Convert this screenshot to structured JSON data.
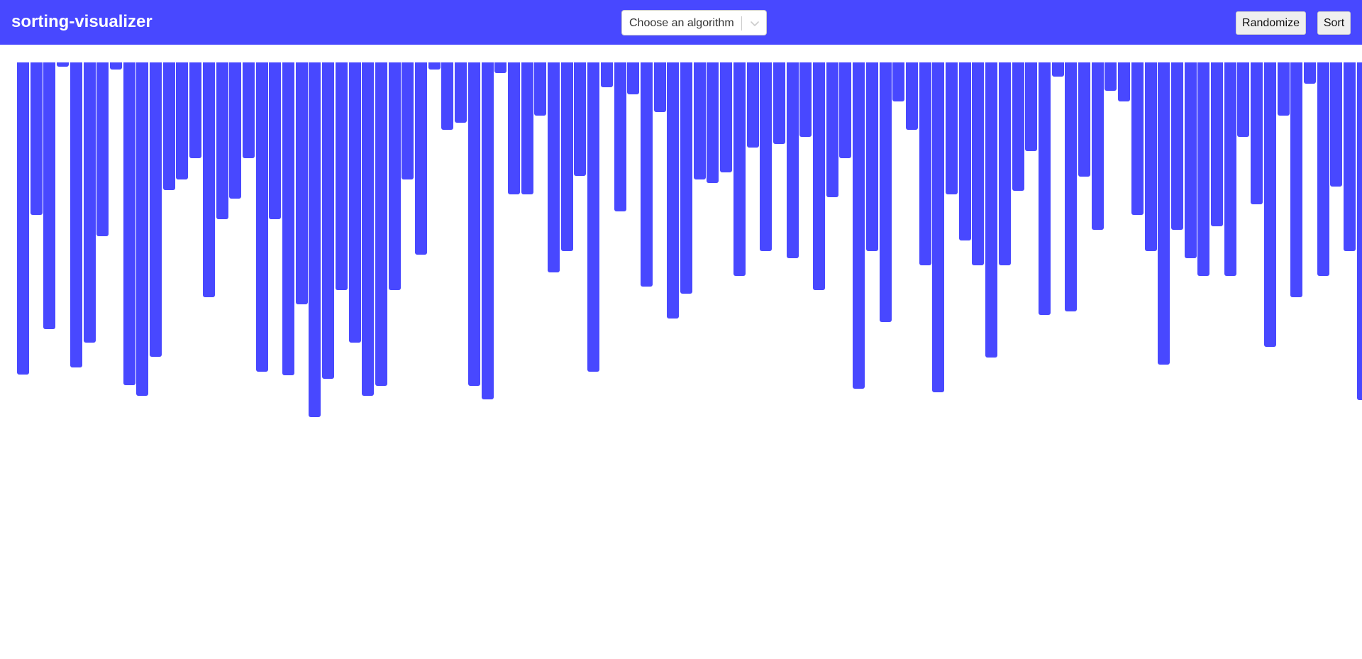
{
  "header": {
    "title": "sorting-visualizer",
    "algorithm_select": {
      "value": "Choose an algorithm",
      "chevron_icon": "chevron-down-icon"
    },
    "randomize_label": "Randomize",
    "sort_label": "Sort"
  },
  "colors": {
    "accent": "#4848ff",
    "background": "#ffffff"
  },
  "chart_data": {
    "type": "bar",
    "orientation": "hanging-from-top",
    "values": [
      440,
      215,
      376,
      6,
      430,
      395,
      245,
      10,
      455,
      470,
      415,
      180,
      165,
      135,
      331,
      221,
      192,
      135,
      436,
      221,
      441,
      341,
      500,
      446,
      321,
      395,
      470,
      456,
      321,
      165,
      271,
      10,
      95,
      85,
      456,
      475,
      15,
      186,
      186,
      75,
      296,
      266,
      160,
      436,
      35,
      210,
      45,
      316,
      70,
      361,
      326,
      165,
      170,
      155,
      301,
      120,
      266,
      115,
      276,
      105,
      321,
      190,
      135,
      460,
      266,
      366,
      55,
      95,
      286,
      465,
      186,
      251,
      286,
      416,
      286,
      181,
      125,
      356,
      20,
      351,
      161,
      236,
      40,
      55,
      215,
      266,
      426,
      236,
      276,
      301,
      231,
      301,
      105,
      200,
      401,
      75,
      331,
      30,
      301,
      175,
      266,
      476
    ]
  }
}
